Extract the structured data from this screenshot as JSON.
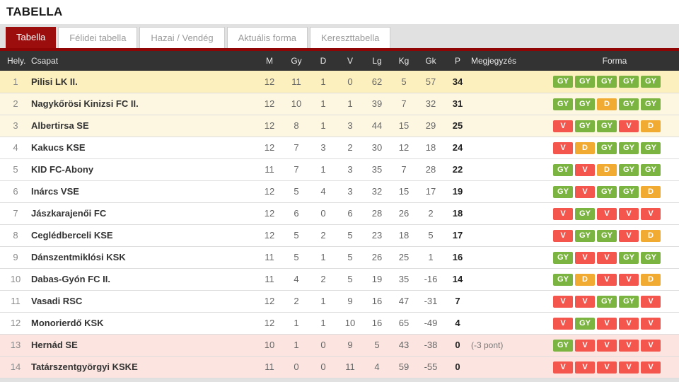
{
  "title": "TABELLA",
  "colors": {
    "accent_red": "#9c0d0d",
    "strip_red": "#8f0404",
    "header_bg": "#333333",
    "row_gold": "#fcf0be",
    "row_cream": "#fdf7e1",
    "row_white": "#ffffff",
    "row_pink": "#fce5e0",
    "badge_win": "#7cb442",
    "badge_draw": "#f2ab32",
    "badge_loss": "#f4554d"
  },
  "tabs": [
    {
      "label": "Tabella",
      "active": true
    },
    {
      "label": "Félidei tabella",
      "active": false
    },
    {
      "label": "Hazai / Vendég",
      "active": false
    },
    {
      "label": "Aktuális forma",
      "active": false
    },
    {
      "label": "Kereszttabella",
      "active": false
    }
  ],
  "table": {
    "columns": [
      "Hely.",
      "Csapat",
      "M",
      "Gy",
      "D",
      "V",
      "Lg",
      "Kg",
      "Gk",
      "P",
      "Megjegyzés",
      "Forma"
    ],
    "rows": [
      {
        "pos": "1",
        "team": "Pilisi LK II.",
        "m": "12",
        "gy": "11",
        "d": "1",
        "v": "0",
        "lg": "62",
        "kg": "5",
        "gk": "57",
        "p": "34",
        "note": "",
        "form": [
          "GY",
          "GY",
          "GY",
          "GY",
          "GY"
        ],
        "highlight": "gold"
      },
      {
        "pos": "2",
        "team": "Nagykőrösi Kinizsi FC II.",
        "m": "12",
        "gy": "10",
        "d": "1",
        "v": "1",
        "lg": "39",
        "kg": "7",
        "gk": "32",
        "p": "31",
        "note": "",
        "form": [
          "GY",
          "GY",
          "D",
          "GY",
          "GY"
        ],
        "highlight": "cream"
      },
      {
        "pos": "3",
        "team": "Albertirsa SE",
        "m": "12",
        "gy": "8",
        "d": "1",
        "v": "3",
        "lg": "44",
        "kg": "15",
        "gk": "29",
        "p": "25",
        "note": "",
        "form": [
          "V",
          "GY",
          "GY",
          "V",
          "D"
        ],
        "highlight": "cream"
      },
      {
        "pos": "4",
        "team": "Kakucs KSE",
        "m": "12",
        "gy": "7",
        "d": "3",
        "v": "2",
        "lg": "30",
        "kg": "12",
        "gk": "18",
        "p": "24",
        "note": "",
        "form": [
          "V",
          "D",
          "GY",
          "GY",
          "GY"
        ],
        "highlight": "white"
      },
      {
        "pos": "5",
        "team": "KID FC-Abony",
        "m": "11",
        "gy": "7",
        "d": "1",
        "v": "3",
        "lg": "35",
        "kg": "7",
        "gk": "28",
        "p": "22",
        "note": "",
        "form": [
          "GY",
          "V",
          "D",
          "GY",
          "GY"
        ],
        "highlight": "white"
      },
      {
        "pos": "6",
        "team": "Inárcs VSE",
        "m": "12",
        "gy": "5",
        "d": "4",
        "v": "3",
        "lg": "32",
        "kg": "15",
        "gk": "17",
        "p": "19",
        "note": "",
        "form": [
          "GY",
          "V",
          "GY",
          "GY",
          "D"
        ],
        "highlight": "white"
      },
      {
        "pos": "7",
        "team": "Jászkarajenői FC",
        "m": "12",
        "gy": "6",
        "d": "0",
        "v": "6",
        "lg": "28",
        "kg": "26",
        "gk": "2",
        "p": "18",
        "note": "",
        "form": [
          "V",
          "GY",
          "V",
          "V",
          "V"
        ],
        "highlight": "white"
      },
      {
        "pos": "8",
        "team": "Ceglédberceli KSE",
        "m": "12",
        "gy": "5",
        "d": "2",
        "v": "5",
        "lg": "23",
        "kg": "18",
        "gk": "5",
        "p": "17",
        "note": "",
        "form": [
          "V",
          "GY",
          "GY",
          "V",
          "D"
        ],
        "highlight": "white"
      },
      {
        "pos": "9",
        "team": "Dánszentmiklósi KSK",
        "m": "11",
        "gy": "5",
        "d": "1",
        "v": "5",
        "lg": "26",
        "kg": "25",
        "gk": "1",
        "p": "16",
        "note": "",
        "form": [
          "GY",
          "V",
          "V",
          "GY",
          "GY"
        ],
        "highlight": "white"
      },
      {
        "pos": "10",
        "team": "Dabas-Gyón FC II.",
        "m": "11",
        "gy": "4",
        "d": "2",
        "v": "5",
        "lg": "19",
        "kg": "35",
        "gk": "-16",
        "p": "14",
        "note": "",
        "form": [
          "GY",
          "D",
          "V",
          "V",
          "D"
        ],
        "highlight": "white"
      },
      {
        "pos": "11",
        "team": "Vasadi RSC",
        "m": "12",
        "gy": "2",
        "d": "1",
        "v": "9",
        "lg": "16",
        "kg": "47",
        "gk": "-31",
        "p": "7",
        "note": "",
        "form": [
          "V",
          "V",
          "GY",
          "GY",
          "V"
        ],
        "highlight": "white"
      },
      {
        "pos": "12",
        "team": "Monorierdő KSK",
        "m": "12",
        "gy": "1",
        "d": "1",
        "v": "10",
        "lg": "16",
        "kg": "65",
        "gk": "-49",
        "p": "4",
        "note": "",
        "form": [
          "V",
          "GY",
          "V",
          "V",
          "V"
        ],
        "highlight": "white"
      },
      {
        "pos": "13",
        "team": "Hernád SE",
        "m": "10",
        "gy": "1",
        "d": "0",
        "v": "9",
        "lg": "5",
        "kg": "43",
        "gk": "-38",
        "p": "0",
        "note": "(-3 pont)",
        "form": [
          "GY",
          "V",
          "V",
          "V",
          "V"
        ],
        "highlight": "pink"
      },
      {
        "pos": "14",
        "team": "Tatárszentgyörgyi KSKE",
        "m": "11",
        "gy": "0",
        "d": "0",
        "v": "11",
        "lg": "4",
        "kg": "59",
        "gk": "-55",
        "p": "0",
        "note": "",
        "form": [
          "V",
          "V",
          "V",
          "V",
          "V"
        ],
        "highlight": "pink"
      }
    ]
  }
}
